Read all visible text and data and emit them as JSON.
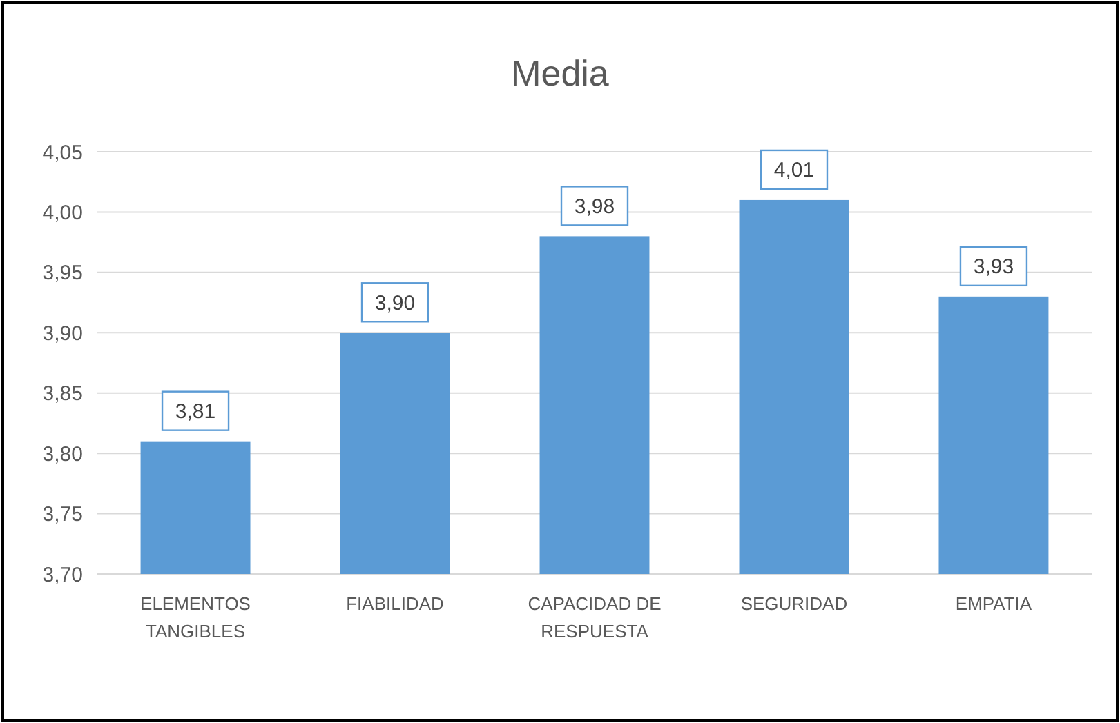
{
  "chart_data": {
    "type": "bar",
    "title": "Media",
    "categories": [
      "ELEMENTOS TANGIBLES",
      "FIABILIDAD",
      "CAPACIDAD DE RESPUESTA",
      "SEGURIDAD",
      "EMPATIA"
    ],
    "values": [
      3.81,
      3.9,
      3.98,
      4.01,
      3.93
    ],
    "value_labels": [
      "3,81",
      "3,90",
      "3,98",
      "4,01",
      "3,93"
    ],
    "color": "#5b9bd5",
    "ylim": [
      3.7,
      4.05
    ],
    "yticks": [
      {
        "value": 3.7,
        "label": "3,70"
      },
      {
        "value": 3.75,
        "label": "3,75"
      },
      {
        "value": 3.8,
        "label": "3,80"
      },
      {
        "value": 3.85,
        "label": "3,85"
      },
      {
        "value": 3.9,
        "label": "3,90"
      },
      {
        "value": 3.95,
        "label": "3,95"
      },
      {
        "value": 4.0,
        "label": "4,00"
      },
      {
        "value": 4.05,
        "label": "4,05"
      }
    ],
    "grid": "y"
  }
}
